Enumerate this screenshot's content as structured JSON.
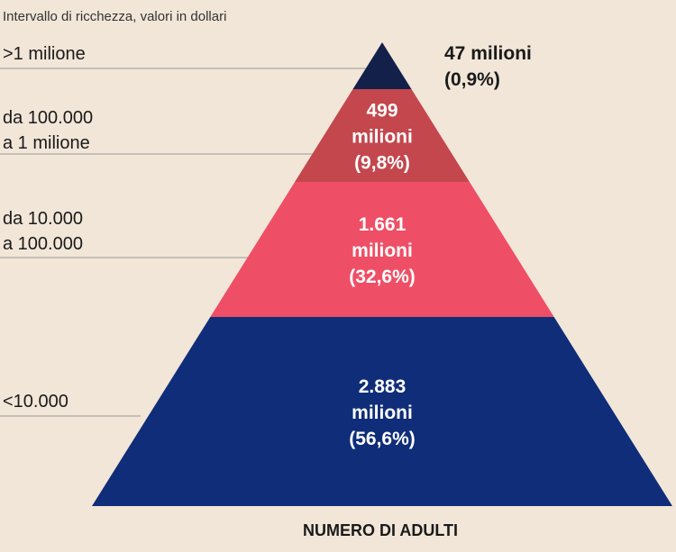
{
  "colors": {
    "background": "#f2e6d8",
    "guide_line": "#999999",
    "label_light": "#ffffff",
    "label_dark": "#1a1a1a"
  },
  "chart_data": {
    "type": "pyramid",
    "title": "",
    "subtitle": "Intervallo di ricchezza, valori in dollari",
    "xlabel": "NUMERO DI ADULTI",
    "unit": "milioni",
    "tiers": [
      {
        "range_label": ">1 milione",
        "adults_millions": 47,
        "share_percent": 0.9,
        "value_text": [
          "47 milioni",
          "(0,9%)"
        ],
        "color": "#13204a"
      },
      {
        "range_label": "da 100.000\na 1 milione",
        "adults_millions": 499,
        "share_percent": 9.8,
        "value_text": [
          "499",
          "milioni",
          "(9,8%)"
        ],
        "color": "#c3474d"
      },
      {
        "range_label": "da 10.000\na 100.000",
        "adults_millions": 1661,
        "share_percent": 32.6,
        "value_text": [
          "1.661",
          "milioni",
          "(32,6%)"
        ],
        "color": "#ee4f66"
      },
      {
        "range_label": "<10.000",
        "adults_millions": 2883,
        "share_percent": 56.6,
        "value_text": [
          "2.883",
          "milioni",
          "(56,6%)"
        ],
        "color": "#0f2d78"
      }
    ]
  }
}
